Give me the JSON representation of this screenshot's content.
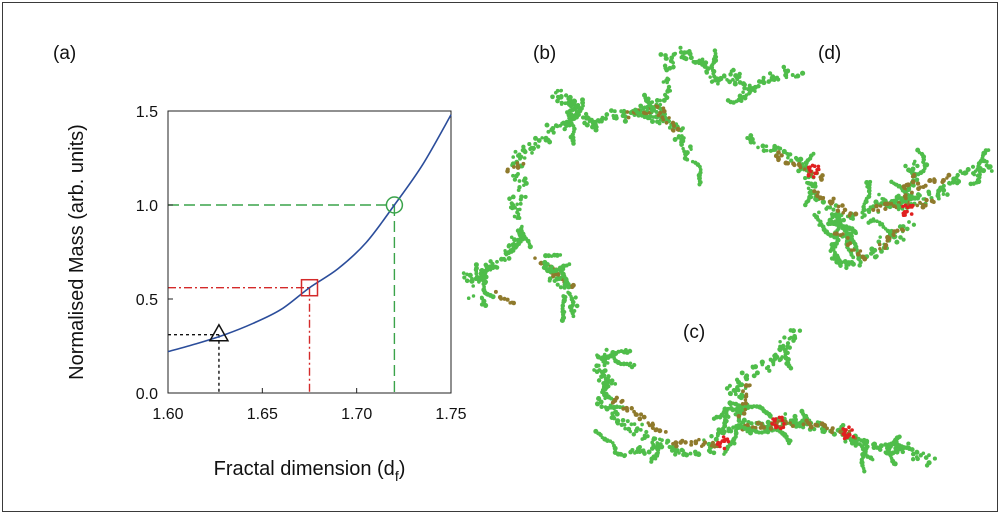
{
  "panels": {
    "a": "(a)",
    "b": "(b)",
    "c": "(c)",
    "d": "(d)"
  },
  "chart_data": {
    "type": "line",
    "xlabel_main": "Fractal dimension (d",
    "xlabel_sub": "f",
    "xlabel_close": ")",
    "ylabel": "Normalised Mass (arb. units)",
    "xlim": [
      1.6,
      1.75
    ],
    "ylim": [
      0.0,
      1.5
    ],
    "x_ticks": [
      "1.60",
      "1.65",
      "1.70",
      "1.75"
    ],
    "y_ticks": [
      "0.0",
      "0.5",
      "1.0",
      "1.5"
    ],
    "curve": {
      "color": "#2b4d9b",
      "x": [
        1.6,
        1.615,
        1.63,
        1.645,
        1.66,
        1.675,
        1.69,
        1.705,
        1.72,
        1.735,
        1.75
      ],
      "y": [
        0.22,
        0.262,
        0.31,
        0.37,
        0.445,
        0.56,
        0.66,
        0.8,
        1.0,
        1.215,
        1.48
      ]
    },
    "markers": [
      {
        "shape": "triangle",
        "x": 1.627,
        "y": 0.31,
        "color": "#111111",
        "dash": "3,3"
      },
      {
        "shape": "square",
        "x": 1.675,
        "y": 0.56,
        "color": "#d42a2a",
        "dash": "8,3,2,3"
      },
      {
        "shape": "circle",
        "x": 1.72,
        "y": 1.0,
        "color": "#3aa34a",
        "dash": "11,5"
      }
    ]
  },
  "colors": {
    "cluster_green": "#4fbd4a",
    "cluster_brown": "#8f7a2c",
    "cluster_red": "#e02020"
  }
}
